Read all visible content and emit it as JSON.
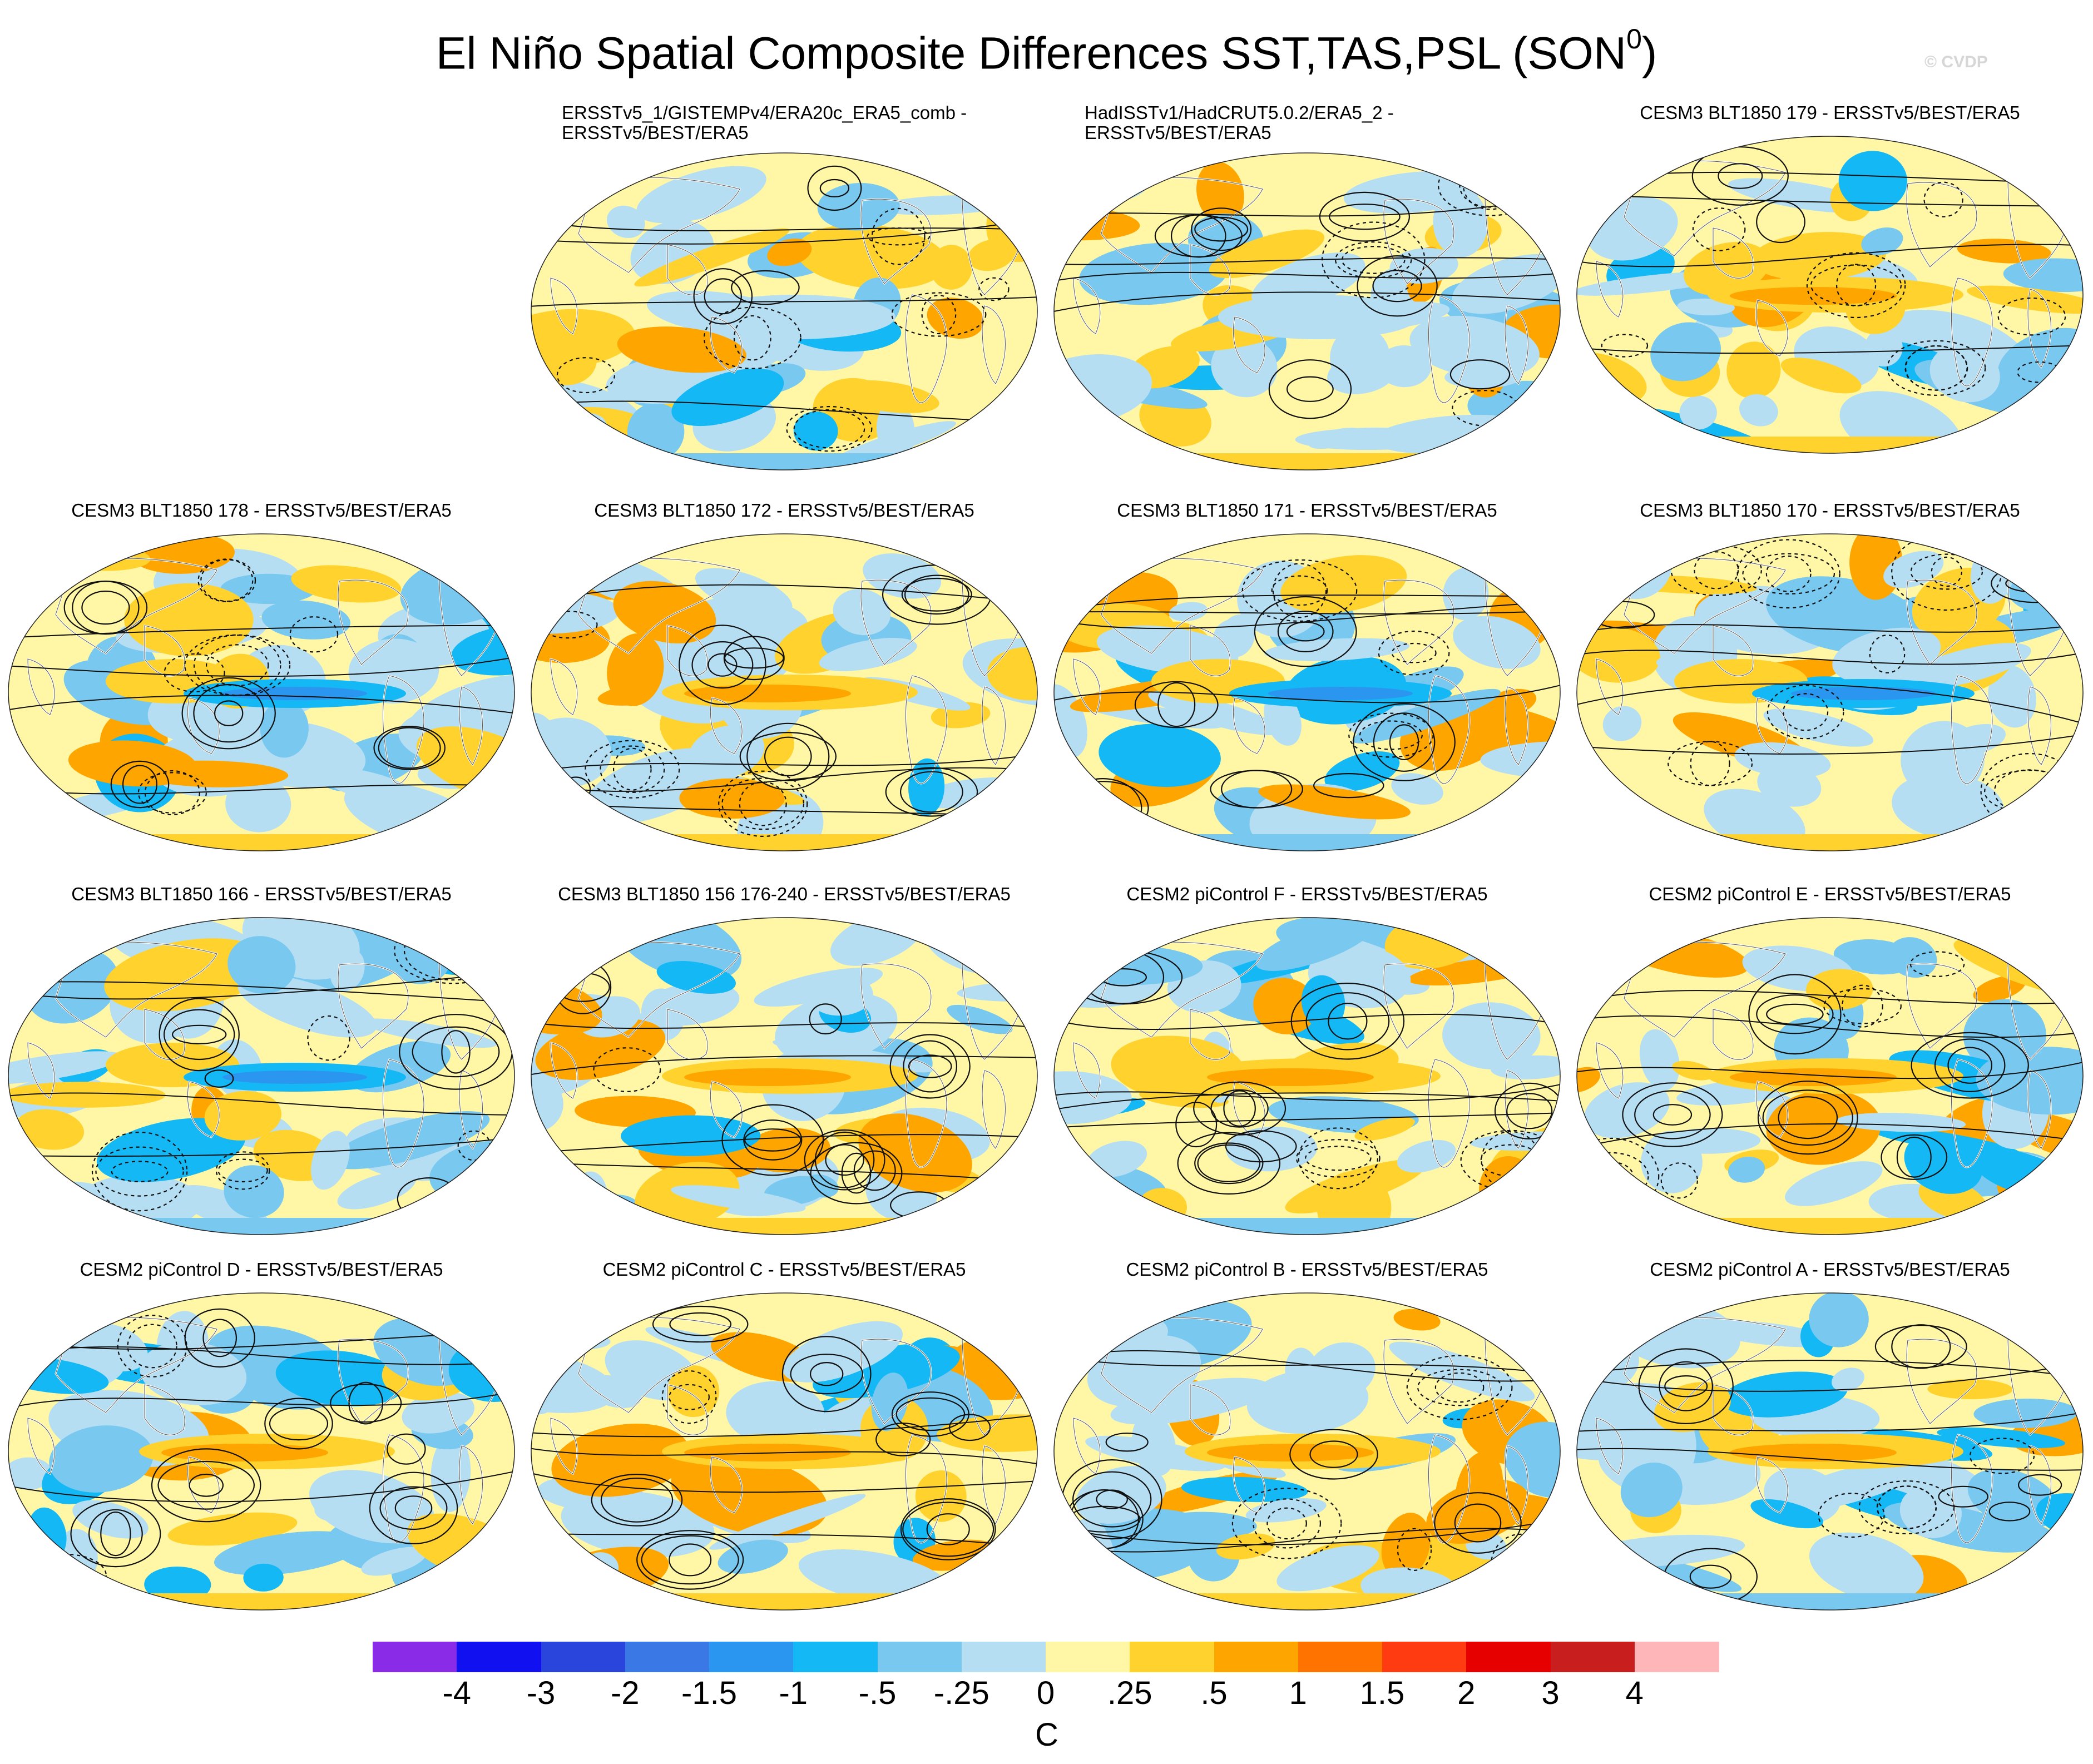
{
  "figure": {
    "title": "El Niño Spatial Composite Differences SST,TAS,PSL (SON",
    "title_superscript": "0",
    "title_suffix": ")",
    "watermark": "© CVDP"
  },
  "chart_data": {
    "type": "heatmap",
    "title": "El Niño Spatial Composite Differences SST,TAS,PSL (SON0)",
    "panels": [
      {
        "title_line1": "ERSSTv5_1/GISTEMPv4/ERA20c_ERA5_comb -",
        "title_line2": "ERSSTv5/BEST/ERA5",
        "pattern": "obs1",
        "seed": 11
      },
      {
        "title_line1": "HadISSTv1/HadCRUT5.0.2/ERA5_2 -",
        "title_line2": "ERSSTv5/BEST/ERA5",
        "pattern": "obs2",
        "seed": 23
      },
      {
        "title_line1": "CESM3 BLT1850 179 - ERSSTv5/BEST/ERA5",
        "title_line2": "",
        "pattern": "warm",
        "seed": 37
      },
      {
        "title_line1": "CESM3 BLT1850 178 - ERSSTv5/BEST/ERA5",
        "title_line2": "",
        "pattern": "cold",
        "seed": 41
      },
      {
        "title_line1": "CESM3 BLT1850 172 - ERSSTv5/BEST/ERA5",
        "title_line2": "",
        "pattern": "warm",
        "seed": 53
      },
      {
        "title_line1": "CESM3 BLT1850 171 - ERSSTv5/BEST/ERA5",
        "title_line2": "",
        "pattern": "cold",
        "seed": 67
      },
      {
        "title_line1": "CESM3 BLT1850 170 - ERSSTv5/BEST/ERA5",
        "title_line2": "",
        "pattern": "cold",
        "seed": 71
      },
      {
        "title_line1": "CESM3 BLT1850 166 - ERSSTv5/BEST/ERA5",
        "title_line2": "",
        "pattern": "cold",
        "seed": 83
      },
      {
        "title_line1": "CESM3 BLT1850 156 176-240 - ERSSTv5/BEST/ERA5",
        "title_line2": "",
        "pattern": "warm",
        "seed": 97
      },
      {
        "title_line1": "CESM2 piControl F - ERSSTv5/BEST/ERA5",
        "title_line2": "",
        "pattern": "warm",
        "seed": 101
      },
      {
        "title_line1": "CESM2 piControl E - ERSSTv5/BEST/ERA5",
        "title_line2": "",
        "pattern": "warm",
        "seed": 113
      },
      {
        "title_line1": "CESM2 piControl D - ERSSTv5/BEST/ERA5",
        "title_line2": "",
        "pattern": "warm",
        "seed": 127
      },
      {
        "title_line1": "CESM2 piControl C - ERSSTv5/BEST/ERA5",
        "title_line2": "",
        "pattern": "warm",
        "seed": 131
      },
      {
        "title_line1": "CESM2 piControl B - ERSSTv5/BEST/ERA5",
        "title_line2": "",
        "pattern": "warm",
        "seed": 149
      },
      {
        "title_line1": "CESM2 piControl A - ERSSTv5/BEST/ERA5",
        "title_line2": "",
        "pattern": "warm",
        "seed": 157
      }
    ],
    "colorbar": {
      "levels": [
        "-4",
        "-3",
        "-2",
        "-1.5",
        "-1",
        "-.5",
        "-.25",
        "0",
        ".25",
        ".5",
        "1",
        "1.5",
        "2",
        "3",
        "4"
      ],
      "colors": [
        "#8a2be8",
        "#1010f0",
        "#2a45dc",
        "#3a78e6",
        "#2b96f0",
        "#14b8f5",
        "#78c8f0",
        "#b6def3",
        "#fff7a6",
        "#ffd22e",
        "#ffa500",
        "#ff7300",
        "#ff3b12",
        "#e60000",
        "#c81e1e",
        "#ffb6b9"
      ],
      "units": "C"
    }
  }
}
